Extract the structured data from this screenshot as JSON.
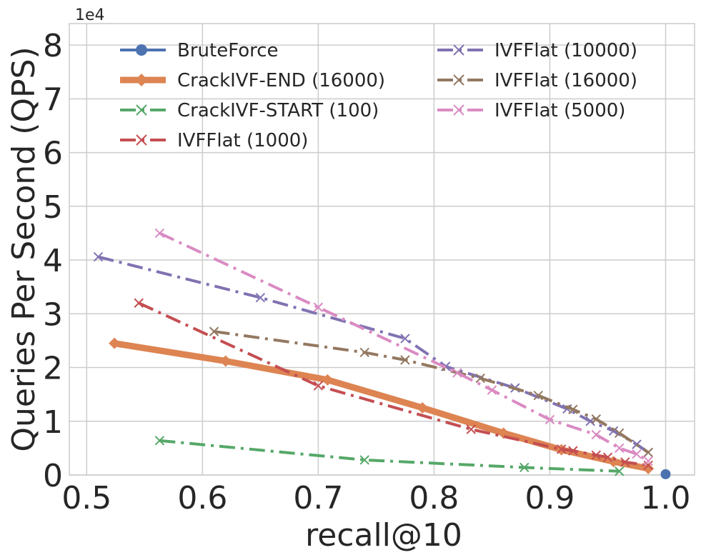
{
  "chart_data": {
    "type": "line",
    "title": "",
    "xlabel": "recall@10",
    "ylabel": "Queries Per Second (QPS)",
    "y_offset_text": "1e4",
    "xlim": [
      0.485,
      1.025
    ],
    "ylim": [
      0,
      84000
    ],
    "x_ticks": [
      0.5,
      0.6,
      0.7,
      0.8,
      0.9,
      1.0
    ],
    "x_tick_labels": [
      "0.5",
      "0.6",
      "0.7",
      "0.8",
      "0.9",
      "1.0"
    ],
    "y_ticks": [
      0,
      10000,
      20000,
      30000,
      40000,
      50000,
      60000,
      70000,
      80000
    ],
    "y_tick_labels": [
      "0",
      "1",
      "2",
      "3",
      "4",
      "5",
      "6",
      "7",
      "8"
    ],
    "grid": true,
    "legend_position": "top",
    "series": [
      {
        "name": "BruteForce",
        "color": "#4c72b0",
        "marker": "circle",
        "dash": "solid",
        "width": 4,
        "x": [
          1.0
        ],
        "y": [
          150
        ]
      },
      {
        "name": "CrackIVF-END (16000)",
        "color": "#dd8452",
        "marker": "diamond",
        "dash": "solid",
        "width": 9,
        "x": [
          0.524,
          0.62,
          0.708,
          0.79,
          0.86,
          0.91,
          0.955,
          0.985
        ],
        "y": [
          24500,
          21200,
          17700,
          12500,
          7800,
          4700,
          2500,
          1200
        ]
      },
      {
        "name": "CrackIVF-START (100)",
        "color": "#55a868",
        "marker": "x",
        "dash": "dashdot",
        "width": 4,
        "x": [
          0.563,
          0.74,
          0.878,
          0.96
        ],
        "y": [
          6400,
          2800,
          1400,
          700
        ]
      },
      {
        "name": "IVFFlat (1000)",
        "color": "#c44e52",
        "marker": "x",
        "dash": "dashdot",
        "width": 4,
        "x": [
          0.545,
          0.7,
          0.832,
          0.91,
          0.92,
          0.94,
          0.95,
          0.965,
          0.985
        ],
        "y": [
          32000,
          16600,
          8500,
          4800,
          4500,
          3700,
          3300,
          2400,
          1800
        ]
      },
      {
        "name": "IVFFlat (10000)",
        "color": "#8172b2",
        "marker": "x",
        "dash": "dashdot",
        "width": 4,
        "x": [
          0.51,
          0.65,
          0.775,
          0.81,
          0.87,
          0.915,
          0.935,
          0.955,
          0.975,
          0.985
        ],
        "y": [
          40600,
          33000,
          25400,
          20200,
          16200,
          12300,
          10000,
          8200,
          5700,
          4200
        ]
      },
      {
        "name": "IVFFlat (16000)",
        "color": "#937860",
        "marker": "x",
        "dash": "dashdot",
        "width": 4,
        "x": [
          0.61,
          0.74,
          0.775,
          0.84,
          0.89,
          0.92,
          0.94,
          0.96,
          0.985
        ],
        "y": [
          26700,
          22800,
          21400,
          18000,
          14800,
          12200,
          10400,
          7800,
          4200
        ]
      },
      {
        "name": "IVFFlat (5000)",
        "color": "#da8bc3",
        "marker": "x",
        "dash": "dashdot",
        "width": 4,
        "x": [
          0.563,
          0.7,
          0.82,
          0.85,
          0.9,
          0.94,
          0.96,
          0.975,
          0.985
        ],
        "y": [
          45000,
          31200,
          19000,
          15800,
          10300,
          7500,
          5000,
          3900,
          2600
        ]
      }
    ]
  }
}
